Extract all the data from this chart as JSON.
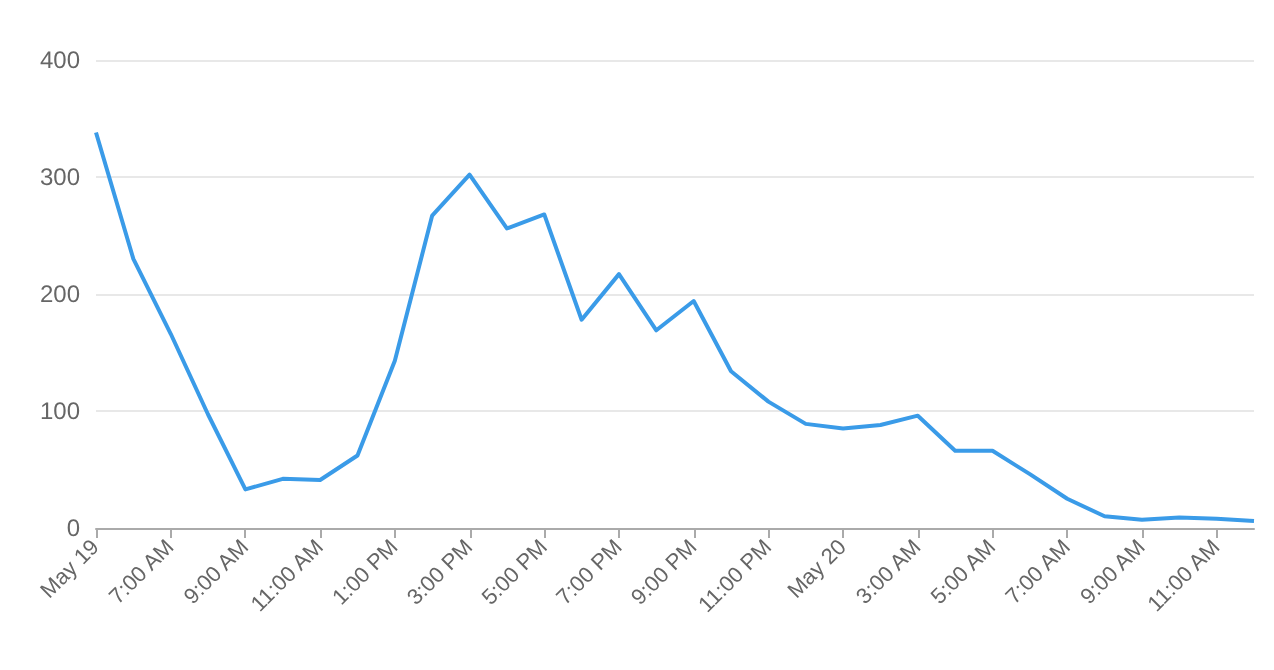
{
  "chart_data": {
    "type": "line",
    "x": [
      "--05-19T05:00",
      "--05-19T06:00",
      "--05-19T07:00",
      "--05-19T08:00",
      "--05-19T09:00",
      "--05-19T10:00",
      "--05-19T11:00",
      "--05-19T12:00",
      "--05-19T13:00",
      "--05-19T14:00",
      "--05-19T15:00",
      "--05-19T16:00",
      "--05-19T17:00",
      "--05-19T18:00",
      "--05-19T19:00",
      "--05-19T20:00",
      "--05-19T21:00",
      "--05-19T22:00",
      "--05-19T23:00",
      "--05-20T00:00",
      "--05-20T01:00",
      "--05-20T02:00",
      "--05-20T03:00",
      "--05-20T04:00",
      "--05-20T05:00",
      "--05-20T06:00",
      "--05-20T07:00",
      "--05-20T08:00",
      "--05-20T09:00",
      "--05-20T10:00",
      "--05-20T11:00",
      "--05-20T12:00"
    ],
    "series": [
      {
        "color": "#3a9be8",
        "values": [
          338,
          230,
          166,
          97,
          33,
          42,
          41,
          62,
          143,
          267,
          302,
          256,
          268,
          178,
          217,
          169,
          194,
          134,
          108,
          89,
          85,
          88,
          96,
          66,
          66,
          46,
          25,
          10,
          7,
          9,
          8,
          6
        ]
      }
    ],
    "xlim": [
      "--05-19T05:00",
      "--05-20T12:00"
    ],
    "xticks": [
      {
        "value": "--05-19T05:00",
        "label": "May 19"
      },
      {
        "value": "--05-19T07:00",
        "label": "7:00 AM"
      },
      {
        "value": "--05-19T09:00",
        "label": "9:00 AM"
      },
      {
        "value": "--05-19T11:00",
        "label": "11:00 AM"
      },
      {
        "value": "--05-19T13:00",
        "label": "1:00 PM"
      },
      {
        "value": "--05-19T15:00",
        "label": "3:00 PM"
      },
      {
        "value": "--05-19T17:00",
        "label": "5:00 PM"
      },
      {
        "value": "--05-19T19:00",
        "label": "7:00 PM"
      },
      {
        "value": "--05-19T21:00",
        "label": "9:00 PM"
      },
      {
        "value": "--05-19T23:00",
        "label": "11:00 PM"
      },
      {
        "value": "--05-20T01:00",
        "label": "May 20"
      },
      {
        "value": "--05-20T03:00",
        "label": "3:00 AM"
      },
      {
        "value": "--05-20T05:00",
        "label": "5:00 AM"
      },
      {
        "value": "--05-20T07:00",
        "label": "7:00 AM"
      },
      {
        "value": "--05-20T09:00",
        "label": "9:00 AM"
      },
      {
        "value": "--05-20T11:00",
        "label": "11:00 AM"
      }
    ],
    "ylim": [
      0,
      400
    ],
    "yticks": [
      0,
      100,
      200,
      300,
      400
    ],
    "grid": "y",
    "marker": "none",
    "line_style": "solid"
  }
}
